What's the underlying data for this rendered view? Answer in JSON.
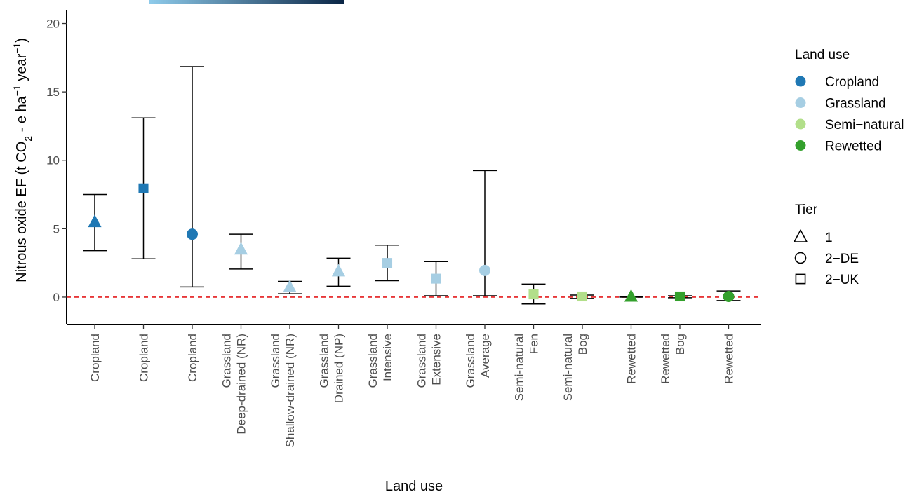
{
  "chart_data": {
    "type": "scatter",
    "xlabel": "Land use",
    "ylabel_parts": [
      "Nitrous oxide EF (t CO",
      "2",
      " - e ha",
      "−1",
      " year",
      "−1",
      ")"
    ],
    "ylim": [
      -2,
      21
    ],
    "yticks": [
      0,
      5,
      10,
      15,
      20
    ],
    "reference_line": {
      "y": 0,
      "style": "dashed",
      "color": "#e41a1c"
    },
    "grid": false,
    "colorbar_strip": {
      "from": "#8ecbeb",
      "to": "#0a2545"
    },
    "categories": [
      [
        "Cropland"
      ],
      [
        "Cropland"
      ],
      [
        "Cropland"
      ],
      [
        "Grassland",
        "Deep-drained (NR)"
      ],
      [
        "Grassland",
        "Shallow-drained (NR)"
      ],
      [
        "Grassland",
        "Drained (NP)"
      ],
      [
        "Grassland",
        "Intensive"
      ],
      [
        "Grassland",
        "Extensive"
      ],
      [
        "Grassland",
        "Average"
      ],
      [
        "Semi-natural",
        "Fen"
      ],
      [
        "Semi-natural",
        "Bog"
      ],
      [
        "Rewetted"
      ],
      [
        "Rewetted",
        "Bog"
      ],
      [
        "Rewetted"
      ]
    ],
    "points": [
      {
        "land_use": "Cropland",
        "tier": "1",
        "value": 5.5,
        "lower": 3.4,
        "upper": 7.5
      },
      {
        "land_use": "Cropland",
        "tier": "2-UK",
        "value": 7.95,
        "lower": 2.8,
        "upper": 13.1
      },
      {
        "land_use": "Cropland",
        "tier": "2-DE",
        "value": 4.6,
        "lower": 0.75,
        "upper": 16.85
      },
      {
        "land_use": "Grassland",
        "tier": "1",
        "value": 3.5,
        "lower": 2.05,
        "upper": 4.6
      },
      {
        "land_use": "Grassland",
        "tier": "1",
        "value": 0.75,
        "lower": 0.25,
        "upper": 1.15
      },
      {
        "land_use": "Grassland",
        "tier": "1",
        "value": 1.9,
        "lower": 0.8,
        "upper": 2.85
      },
      {
        "land_use": "Grassland",
        "tier": "2-UK",
        "value": 2.5,
        "lower": 1.2,
        "upper": 3.8
      },
      {
        "land_use": "Grassland",
        "tier": "2-UK",
        "value": 1.35,
        "lower": 0.1,
        "upper": 2.6
      },
      {
        "land_use": "Grassland",
        "tier": "2-DE",
        "value": 1.95,
        "lower": 0.1,
        "upper": 9.25
      },
      {
        "land_use": "Semi-natural",
        "tier": "2-UK",
        "value": 0.2,
        "lower": -0.5,
        "upper": 0.95
      },
      {
        "land_use": "Semi-natural",
        "tier": "2-UK",
        "value": 0.05,
        "lower": -0.1,
        "upper": 0.15
      },
      {
        "land_use": "Rewetted",
        "tier": "1",
        "value": 0.05,
        "lower": 0.0,
        "upper": 0.05
      },
      {
        "land_use": "Rewetted",
        "tier": "2-UK",
        "value": 0.05,
        "lower": -0.05,
        "upper": 0.1
      },
      {
        "land_use": "Rewetted",
        "tier": "2-DE",
        "value": 0.05,
        "lower": -0.25,
        "upper": 0.45
      }
    ],
    "legend": {
      "position": "right",
      "land_use_title": "Land use",
      "land_use": [
        {
          "name": "Cropland",
          "color": "#1f78b4"
        },
        {
          "name": "Grassland",
          "color": "#a6cee3"
        },
        {
          "name": "Semi−natural",
          "color": "#b2df8a"
        },
        {
          "name": "Rewetted",
          "color": "#33a02c"
        }
      ],
      "tier_title": "Tier",
      "tier": [
        {
          "name": "1",
          "shape": "triangle"
        },
        {
          "name": "2−DE",
          "shape": "circle"
        },
        {
          "name": "2−UK",
          "shape": "square"
        }
      ]
    }
  }
}
